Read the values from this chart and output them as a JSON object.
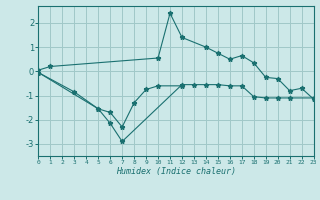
{
  "xlabel": "Humidex (Indice chaleur)",
  "bg_color": "#cce8e8",
  "grid_color": "#a0c8c8",
  "line_color": "#1a7070",
  "xlim": [
    0,
    23
  ],
  "ylim": [
    -3.5,
    2.7
  ],
  "yticks": [
    -3,
    -2,
    -1,
    0,
    1,
    2
  ],
  "xticks": [
    0,
    1,
    2,
    3,
    4,
    5,
    6,
    7,
    8,
    9,
    10,
    11,
    12,
    13,
    14,
    15,
    16,
    17,
    18,
    19,
    20,
    21,
    22,
    23
  ],
  "line1_x": [
    0,
    1,
    10,
    11,
    12,
    14,
    15,
    16,
    17,
    18,
    19,
    20,
    21,
    22,
    23
  ],
  "line1_y": [
    0.05,
    0.2,
    0.55,
    2.4,
    1.4,
    1.0,
    0.75,
    0.5,
    0.65,
    0.35,
    -0.25,
    -0.3,
    -0.8,
    -0.7,
    -1.15
  ],
  "line2_x": [
    0,
    3,
    5,
    6,
    7,
    8,
    9,
    10,
    12
  ],
  "line2_y": [
    -0.05,
    -0.85,
    -1.55,
    -1.7,
    -2.3,
    -1.3,
    -0.75,
    -0.6,
    -0.6
  ],
  "line3_x": [
    0,
    5,
    6,
    7,
    12,
    13,
    14,
    15,
    16,
    17,
    18,
    19,
    20,
    21,
    23
  ],
  "line3_y": [
    -0.05,
    -1.55,
    -2.15,
    -2.9,
    -0.55,
    -0.55,
    -0.55,
    -0.55,
    -0.6,
    -0.6,
    -1.05,
    -1.1,
    -1.1,
    -1.1,
    -1.1
  ]
}
